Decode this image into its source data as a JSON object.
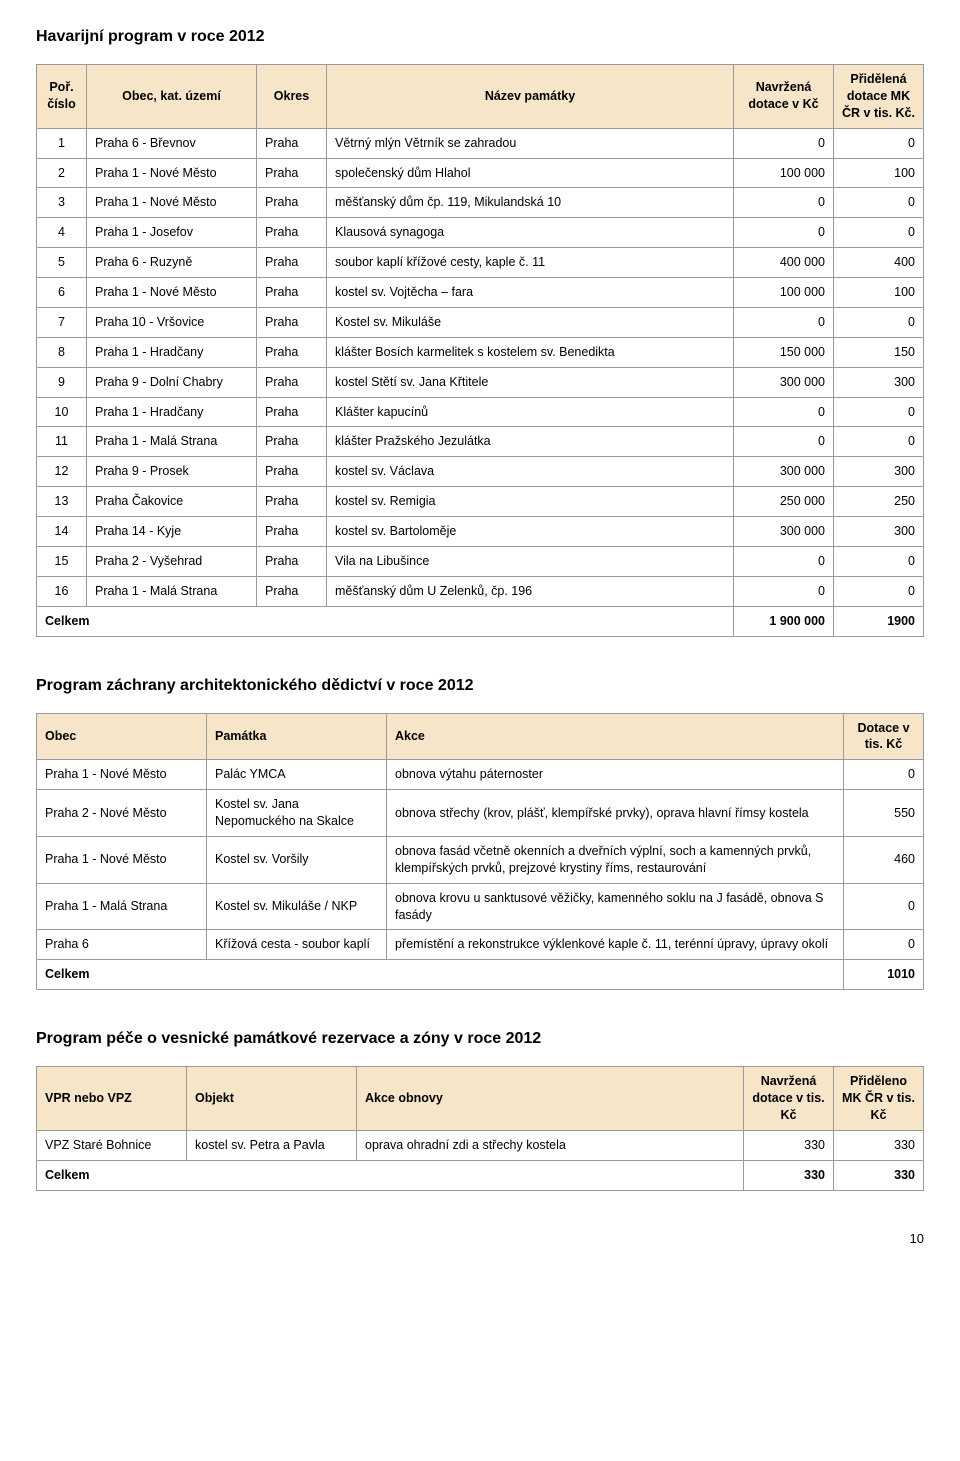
{
  "page_number": "10",
  "colors": {
    "header_bg": "#f7e5ca",
    "border": "#9a9a9a",
    "text": "#000000",
    "page_bg": "#ffffff"
  },
  "section1": {
    "title": "Havarijní program v roce 2012",
    "headers": {
      "c0": "Poř.\nčíslo",
      "c1": "Obec, kat. území",
      "c2": "Okres",
      "c3": "Název památky",
      "c4": "Navržená\ndotace v  Kč",
      "c5": "Přidělená\ndotace\nMK ČR\nv tis. Kč."
    },
    "rows": [
      {
        "n": "1",
        "obec": "Praha 6 - Břevnov",
        "okres": "Praha",
        "nazev": "Větrný mlýn Větrník se zahradou",
        "nav": "0",
        "prid": "0"
      },
      {
        "n": "2",
        "obec": "Praha 1 - Nové Město",
        "okres": "Praha",
        "nazev": "společenský dům Hlahol",
        "nav": "100 000",
        "prid": "100"
      },
      {
        "n": "3",
        "obec": "Praha 1 - Nové Město",
        "okres": "Praha",
        "nazev": "měšťanský dům čp. 119, Mikulandská 10",
        "nav": "0",
        "prid": "0"
      },
      {
        "n": "4",
        "obec": "Praha 1 - Josefov",
        "okres": "Praha",
        "nazev": "Klausová synagoga",
        "nav": "0",
        "prid": "0"
      },
      {
        "n": "5",
        "obec": "Praha 6 - Ruzyně",
        "okres": "Praha",
        "nazev": "soubor kaplí křížové cesty, kaple č. 11",
        "nav": "400 000",
        "prid": "400"
      },
      {
        "n": "6",
        "obec": "Praha 1 - Nové Město",
        "okres": "Praha",
        "nazev": "kostel sv. Vojtěcha – fara",
        "nav": "100 000",
        "prid": "100"
      },
      {
        "n": "7",
        "obec": "Praha 10 - Vršovice",
        "okres": "Praha",
        "nazev": "Kostel sv. Mikuláše",
        "nav": "0",
        "prid": "0"
      },
      {
        "n": "8",
        "obec": "Praha 1 - Hradčany",
        "okres": "Praha",
        "nazev": "klášter Bosích karmelitek s kostelem sv. Benedikta",
        "nav": "150 000",
        "prid": "150"
      },
      {
        "n": "9",
        "obec": "Praha 9 - Dolní Chabry",
        "okres": "Praha",
        "nazev": "kostel Stětí sv. Jana Křtitele",
        "nav": "300 000",
        "prid": "300"
      },
      {
        "n": "10",
        "obec": "Praha 1 - Hradčany",
        "okres": "Praha",
        "nazev": "Klášter kapucínů",
        "nav": "0",
        "prid": "0"
      },
      {
        "n": "11",
        "obec": "Praha 1 - Malá Strana",
        "okres": "Praha",
        "nazev": "klášter Pražského Jezulátka",
        "nav": "0",
        "prid": "0"
      },
      {
        "n": "12",
        "obec": "Praha 9 - Prosek",
        "okres": "Praha",
        "nazev": "kostel sv. Václava",
        "nav": "300 000",
        "prid": "300"
      },
      {
        "n": "13",
        "obec": "Praha Čakovice",
        "okres": "Praha",
        "nazev": "kostel sv. Remigia",
        "nav": "250 000",
        "prid": "250"
      },
      {
        "n": "14",
        "obec": "Praha 14 - Kyje",
        "okres": "Praha",
        "nazev": "kostel sv. Bartoloměje",
        "nav": "300 000",
        "prid": "300"
      },
      {
        "n": "15",
        "obec": "Praha 2 - Vyšehrad",
        "okres": "Praha",
        "nazev": "Vila na Libušince",
        "nav": "0",
        "prid": "0"
      },
      {
        "n": "16",
        "obec": "Praha 1 - Malá Strana",
        "okres": "Praha",
        "nazev": "měšťanský dům U Zelenků, čp. 196",
        "nav": "0",
        "prid": "0"
      }
    ],
    "total": {
      "label": "Celkem",
      "nav": "1 900 000",
      "prid": "1900"
    }
  },
  "section2": {
    "title": "Program záchrany architektonického dědictví v roce 2012",
    "headers": {
      "c0": "Obec",
      "c1": "Památka",
      "c2": "Akce",
      "c3": "Dotace\nv tis. Kč"
    },
    "rows": [
      {
        "obec": "Praha 1 - Nové Město",
        "pam": "Palác YMCA",
        "akce": "obnova výtahu páternoster",
        "dot": "0"
      },
      {
        "obec": "Praha 2 - Nové Město",
        "pam": "Kostel sv. Jana Nepomuckého na Skalce",
        "akce": "obnova střechy (krov, plášť, klempířské prvky), oprava hlavní římsy kostela",
        "dot": "550"
      },
      {
        "obec": "Praha 1 - Nové Město",
        "pam": "Kostel sv. Voršily",
        "akce": "obnova fasád včetně okenních a dveřních výplní, soch a kamenných prvků, klempířských prvků, prejzové krystiny říms, restaurování",
        "dot": "460"
      },
      {
        "obec": "Praha 1 - Malá Strana",
        "pam": "Kostel sv. Mikuláše / NKP",
        "akce": "obnova krovu u sanktusové věžičky, kamenného soklu na J fasádě, obnova S fasády",
        "dot": "0"
      },
      {
        "obec": "Praha 6",
        "pam": "Křížová cesta - soubor kaplí",
        "akce": "přemístění a rekonstrukce výklenkové kaple č. 11, terénní úpravy, úpravy okolí",
        "dot": "0"
      }
    ],
    "total": {
      "label": "Celkem",
      "dot": "1010"
    }
  },
  "section3": {
    "title": "Program péče o vesnické památkové rezervace a zóny v roce 2012",
    "headers": {
      "c0": "VPR nebo VPZ",
      "c1": "Objekt",
      "c2": "Akce obnovy",
      "c3": "Navržená\ndotace\nv tis. Kč",
      "c4": "Přiděleno\nMK ČR\nv tis. Kč"
    },
    "rows": [
      {
        "vpr": "VPZ Staré Bohnice",
        "obj": "kostel sv. Petra a Pavla",
        "akce": "oprava ohradní zdi a střechy kostela",
        "nav": "330",
        "prid": "330"
      }
    ],
    "total": {
      "label": "Celkem",
      "nav": "330",
      "prid": "330"
    }
  }
}
